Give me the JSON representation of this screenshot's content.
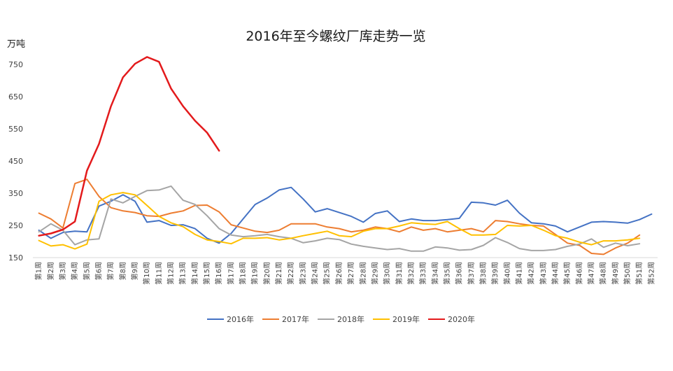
{
  "chart_data": {
    "type": "line",
    "title": "2016年至今螺纹厂库走势一览",
    "ylabel": "万吨",
    "xlabel": "",
    "ylim": [
      150,
      800
    ],
    "yticks": [
      150,
      250,
      350,
      450,
      550,
      650,
      750
    ],
    "categories": [
      "第1周",
      "第2周",
      "第3周",
      "第4周",
      "第5周",
      "第6周",
      "第7周",
      "第8周",
      "第9周",
      "第10周",
      "第11周",
      "第12周",
      "第13周",
      "第14周",
      "第15周",
      "第16周",
      "第17周",
      "第18周",
      "第19周",
      "第20周",
      "第21周",
      "第22周",
      "第23周",
      "第24周",
      "第25周",
      "第26周",
      "第27周",
      "第28周",
      "第29周",
      "第30周",
      "第31周",
      "第32周",
      "第33周",
      "第34周",
      "第35周",
      "第36周",
      "第37周",
      "第38周",
      "第39周",
      "第40周",
      "第41周",
      "第42周",
      "第43周",
      "第44周",
      "第45周",
      "第46周",
      "第47周",
      "第48周",
      "第49周",
      "第50周",
      "第51周",
      "第52周"
    ],
    "grid": false,
    "legend_position": "bottom",
    "series": [
      {
        "name": "2016年",
        "color": "#4472C4",
        "values": [
          235,
          210,
          228,
          232,
          230,
          310,
          325,
          345,
          325,
          260,
          265,
          250,
          252,
          240,
          210,
          195,
          225,
          270,
          315,
          335,
          360,
          368,
          332,
          292,
          302,
          290,
          278,
          260,
          287,
          295,
          262,
          270,
          265,
          265,
          268,
          272,
          322,
          320,
          313,
          328,
          288,
          258,
          255,
          248,
          230,
          245,
          260,
          262,
          260,
          257,
          268,
          285
        ]
      },
      {
        "name": "2017年",
        "color": "#ED7D31",
        "values": [
          288,
          270,
          242,
          380,
          393,
          340,
          305,
          295,
          290,
          280,
          278,
          288,
          295,
          312,
          313,
          292,
          252,
          242,
          232,
          228,
          235,
          255,
          255,
          255,
          245,
          240,
          230,
          235,
          245,
          240,
          230,
          245,
          235,
          240,
          230,
          235,
          240,
          230,
          265,
          262,
          255,
          250,
          248,
          222,
          195,
          188,
          163,
          160,
          180,
          195,
          220,
          null
        ]
      },
      {
        "name": "2018年",
        "color": "#A5A5A5",
        "values": [
          230,
          255,
          235,
          190,
          205,
          208,
          332,
          320,
          340,
          358,
          360,
          372,
          328,
          315,
          280,
          240,
          220,
          215,
          218,
          222,
          215,
          210,
          196,
          202,
          210,
          206,
          192,
          185,
          180,
          175,
          178,
          170,
          170,
          183,
          180,
          173,
          175,
          188,
          212,
          197,
          178,
          172,
          172,
          175,
          185,
          192,
          208,
          182,
          195,
          187,
          193,
          null
        ]
      },
      {
        "name": "2019年",
        "color": "#FFC000",
        "values": [
          203,
          186,
          190,
          177,
          192,
          325,
          345,
          352,
          345,
          312,
          278,
          258,
          246,
          222,
          205,
          200,
          193,
          210,
          210,
          212,
          205,
          210,
          218,
          225,
          232,
          218,
          215,
          232,
          240,
          240,
          248,
          258,
          255,
          253,
          262,
          240,
          220,
          220,
          222,
          250,
          248,
          250,
          235,
          218,
          210,
          198,
          190,
          202,
          202,
          205,
          210,
          null
        ]
      },
      {
        "name": "2020年",
        "color": "#E31A1C",
        "values": [
          218,
          225,
          237,
          262,
          420,
          503,
          620,
          710,
          752,
          773,
          758,
          675,
          620,
          575,
          538,
          482,
          null,
          null,
          null,
          null,
          null,
          null,
          null,
          null,
          null,
          null,
          null,
          null,
          null,
          null,
          null,
          null,
          null,
          null,
          null,
          null,
          null,
          null,
          null,
          null,
          null,
          null,
          null,
          null,
          null,
          null,
          null,
          null,
          null,
          null,
          null,
          null
        ]
      }
    ]
  }
}
